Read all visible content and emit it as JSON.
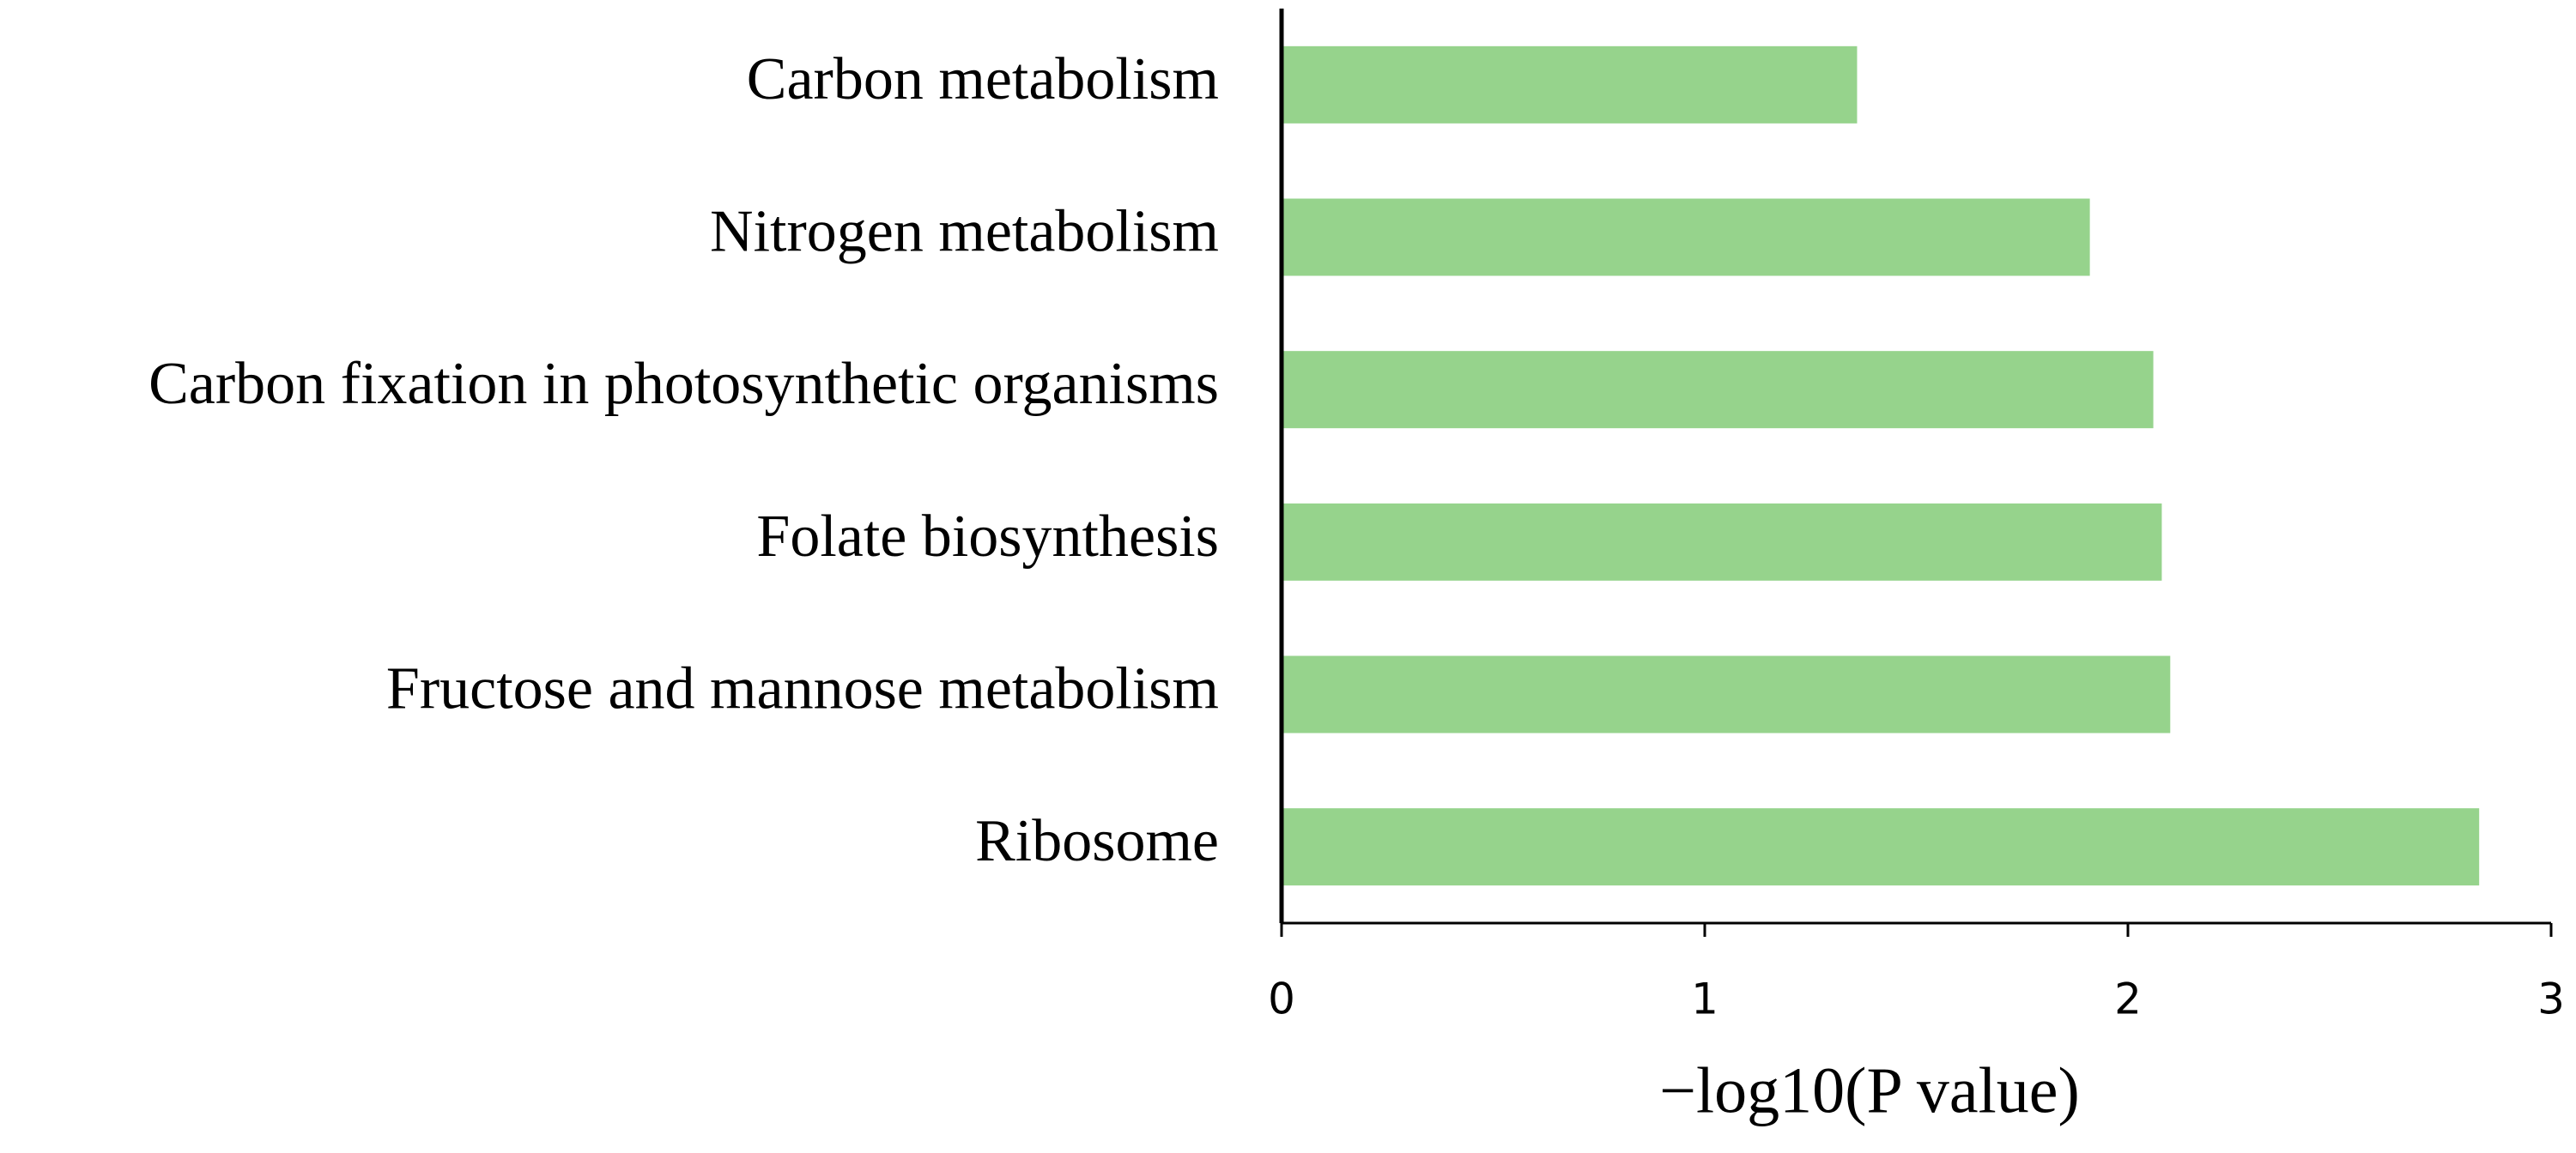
{
  "chart_data": {
    "type": "barh",
    "categories": [
      "Carbon metabolism",
      "Nitrogen metabolism",
      "Carbon fixation in photosynthetic organisms",
      "Folate biosynthesis",
      "Fructose and mannose metabolism",
      "Ribosome"
    ],
    "values": [
      1.36,
      1.91,
      2.06,
      2.08,
      2.1,
      2.83
    ],
    "color": "#96d38c",
    "x_label": "−log10(P value)",
    "xlim": [
      0,
      3
    ],
    "xticks": [
      0,
      1,
      2,
      3
    ],
    "grid": false
  }
}
